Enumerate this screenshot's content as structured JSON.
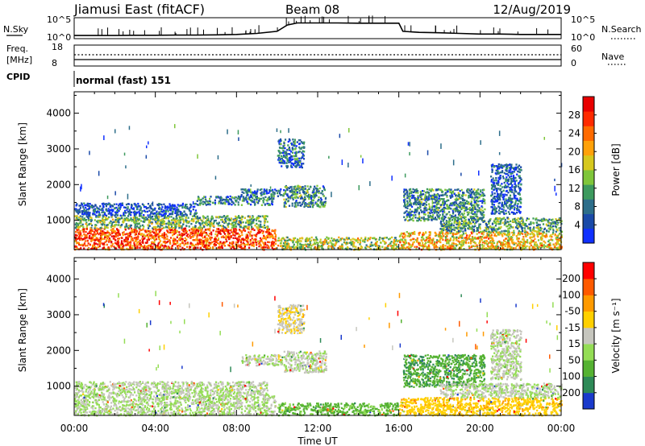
{
  "header": {
    "station": "Jiamusi East (fitACF)",
    "beam": "Beam 08",
    "date": "12/Aug/2019"
  },
  "strip_labels": {
    "nsky": "N.Sky",
    "nsky_ticks": [
      "10^5",
      "10^0"
    ],
    "nsearch": "N.Search",
    "nsearch_ticks": [
      "10^5",
      "10^0"
    ],
    "freq_top": "Freq.",
    "freq_bottom": "[MHz]",
    "freq_ticks": [
      "18",
      "8"
    ],
    "nave": "Nave",
    "nave_ticks": [
      "60",
      "0"
    ],
    "cpid": "CPID",
    "cpid_value": "normal (fast) 151"
  },
  "chart_data": [
    {
      "type": "line",
      "name": "noise_strip",
      "x": [
        0,
        1,
        2,
        3,
        4,
        5,
        6,
        7,
        8,
        9,
        10,
        10.5,
        11,
        12,
        13,
        14,
        15,
        16,
        16.2,
        17,
        18,
        19,
        20,
        21,
        22,
        23,
        24
      ],
      "y": [
        0.15,
        0.15,
        0.15,
        0.16,
        0.16,
        0.17,
        0.17,
        0.18,
        0.2,
        0.25,
        0.35,
        0.65,
        0.75,
        0.75,
        0.75,
        0.74,
        0.74,
        0.74,
        0.35,
        0.3,
        0.28,
        0.25,
        0.22,
        0.22,
        0.2,
        0.2,
        0.2
      ],
      "xlim": [
        0,
        24
      ]
    },
    {
      "type": "heatmap",
      "name": "power",
      "xlabel": "Time UT",
      "ylabel": "Slant Range [km]",
      "xlim": [
        0,
        24
      ],
      "ylim": [
        180,
        4600
      ],
      "x_ticks": [
        "00:00",
        "04:00",
        "08:00",
        "12:00",
        "16:00",
        "20:00",
        "00:00"
      ],
      "y_ticks": [
        "1000",
        "2000",
        "3000",
        "4000"
      ],
      "colorbar": {
        "label": "Power [dB]",
        "ticks": [
          "4",
          "8",
          "12",
          "16",
          "20",
          "24",
          "28"
        ],
        "colors": [
          "#1030ff",
          "#1a4aa8",
          "#2d6e8a",
          "#3d9a5e",
          "#7fc63a",
          "#d6c81e",
          "#ffa10a",
          "#ff6a00",
          "#ff2a00",
          "#e80000"
        ]
      },
      "regions": [
        {
          "t": [
            0.0,
            9.9
          ],
          "r": [
            200,
            800
          ],
          "level": 0.8
        },
        {
          "t": [
            0.0,
            9.5
          ],
          "r": [
            800,
            1150
          ],
          "level": 0.4
        },
        {
          "t": [
            0.0,
            6.0
          ],
          "r": [
            1150,
            1500
          ],
          "level": 0.15
        },
        {
          "t": [
            6.0,
            9.8
          ],
          "r": [
            1450,
            1700
          ],
          "level": 0.25
        },
        {
          "t": [
            8.2,
            10.3
          ],
          "r": [
            1700,
            1900
          ],
          "level": 0.2
        },
        {
          "t": [
            10.3,
            12.4
          ],
          "r": [
            1400,
            2000
          ],
          "level": 0.3
        },
        {
          "t": [
            10.0,
            11.3
          ],
          "r": [
            2500,
            3300
          ],
          "level": 0.2
        },
        {
          "t": [
            10.0,
            16.0
          ],
          "r": [
            200,
            550
          ],
          "level": 0.5
        },
        {
          "t": [
            16.2,
            20.2
          ],
          "r": [
            1000,
            1900
          ],
          "level": 0.3
        },
        {
          "t": [
            16.0,
            24.0
          ],
          "r": [
            200,
            700
          ],
          "level": 0.6
        },
        {
          "t": [
            18.0,
            24.0
          ],
          "r": [
            700,
            1100
          ],
          "level": 0.35
        },
        {
          "t": [
            20.5,
            22.0
          ],
          "r": [
            1200,
            2600
          ],
          "level": 0.15
        }
      ]
    },
    {
      "type": "heatmap",
      "name": "velocity",
      "xlabel": "Time UT",
      "ylabel": "Slant Range [km]",
      "xlim": [
        0,
        24
      ],
      "ylim": [
        180,
        4600
      ],
      "x_ticks": [
        "00:00",
        "04:00",
        "08:00",
        "12:00",
        "16:00",
        "20:00",
        "00:00"
      ],
      "y_ticks": [
        "1000",
        "2000",
        "3000",
        "4000"
      ],
      "colorbar": {
        "label": "Velocity [m s⁻¹]",
        "ticks": [
          "200",
          "100",
          "50",
          "15",
          "-15",
          "-50",
          "-100",
          "-200"
        ],
        "colors": [
          "#1a3acc",
          "#2e8a57",
          "#55b232",
          "#94dd55",
          "#c6c6be",
          "#ffd000",
          "#ff9a00",
          "#ff5a00",
          "#ff0000"
        ]
      },
      "regions": [
        {
          "t": [
            0.0,
            9.9
          ],
          "r": [
            200,
            800
          ],
          "level": 0.44
        },
        {
          "t": [
            0.0,
            9.5
          ],
          "r": [
            800,
            1150
          ],
          "level": 0.45
        },
        {
          "t": [
            8.2,
            10.3
          ],
          "r": [
            1600,
            1900
          ],
          "level": 0.46
        },
        {
          "t": [
            10.3,
            12.4
          ],
          "r": [
            1400,
            2000
          ],
          "level": 0.46
        },
        {
          "t": [
            10.0,
            11.3
          ],
          "r": [
            2500,
            3300
          ],
          "level": 0.55
        },
        {
          "t": [
            10.0,
            16.0
          ],
          "r": [
            200,
            550
          ],
          "level": 0.3
        },
        {
          "t": [
            16.2,
            20.2
          ],
          "r": [
            1000,
            1900
          ],
          "level": 0.25
        },
        {
          "t": [
            16.0,
            24.0
          ],
          "r": [
            200,
            700
          ],
          "level": 0.62
        },
        {
          "t": [
            18.0,
            24.0
          ],
          "r": [
            700,
            1100
          ],
          "level": 0.46
        },
        {
          "t": [
            20.5,
            22.0
          ],
          "r": [
            1200,
            2600
          ],
          "level": 0.46
        }
      ]
    }
  ]
}
